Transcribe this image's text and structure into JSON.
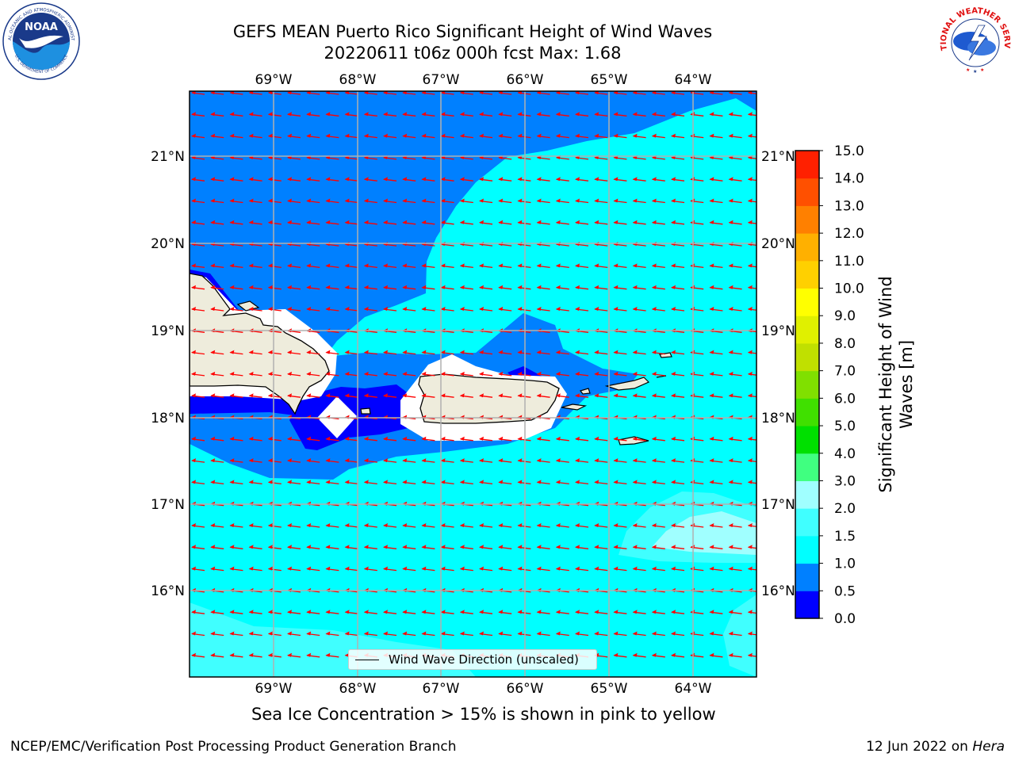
{
  "header": {
    "title_line1": "GEFS MEAN Puerto Rico Significant Height of Wind Waves",
    "title_line2": "20220611 t06z 000h fcst   Max: 1.68"
  },
  "logos": {
    "noaa_text": "NOAA",
    "noaa_ring": "NATIONAL OCEANIC AND ATMOSPHERIC ADMINISTRATION",
    "noaa_ring_bottom": "U.S. DEPARTMENT OF COMMERCE",
    "nws_ring": "NATIONAL WEATHER SERVICE"
  },
  "map": {
    "lon_labels": [
      "69°W",
      "68°W",
      "67°W",
      "66°W",
      "65°W",
      "64°W"
    ],
    "lat_labels": [
      "21°N",
      "20°N",
      "19°N",
      "18°N",
      "17°N",
      "16°N"
    ],
    "legend": "Wind Wave Direction (unscaled)",
    "arrow_color": "#ff0000",
    "land_color": "#eeecdc"
  },
  "colorbar": {
    "label": "Significant Height of Wind Waves [m]",
    "label_line1": "Significant Height of Wind",
    "label_line2": "Waves [m]",
    "ticks": [
      "0.0",
      "0.5",
      "1.0",
      "1.5",
      "2.0",
      "3.0",
      "4.0",
      "5.0",
      "6.0",
      "7.0",
      "8.0",
      "9.0",
      "10.0",
      "11.0",
      "12.0",
      "13.0",
      "14.0",
      "15.0"
    ],
    "colors": [
      "#0000ff",
      "#0080ff",
      "#00ffff",
      "#40ffff",
      "#a0ffff",
      "#40ff80",
      "#00e000",
      "#40e000",
      "#80e000",
      "#c0e000",
      "#e0f000",
      "#ffff00",
      "#ffd000",
      "#ffb000",
      "#ff8000",
      "#ff5000",
      "#ff2000",
      "#ff0000"
    ]
  },
  "footer": {
    "sea_ice_note": "Sea Ice Concentration > 15% is shown in pink to yellow",
    "credit_left": "NCEP/EMC/Verification Post Processing Product Generation Branch",
    "credit_right_prefix": "12 Jun 2022 on ",
    "credit_right_machine": "Hera"
  }
}
